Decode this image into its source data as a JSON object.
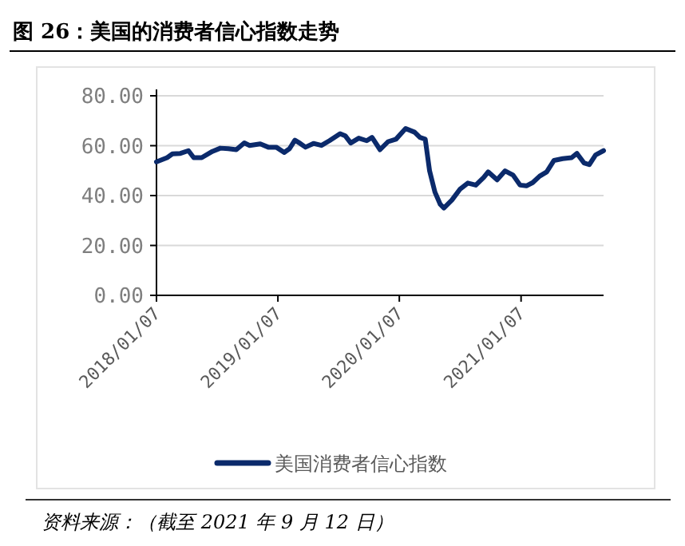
{
  "chart_data": {
    "type": "line",
    "title": "图 26：美国的消费者信心指数走势",
    "x": [
      "2018-01-07",
      "2018-02-08",
      "2018-02-24",
      "2018-03-20",
      "2018-04-13",
      "2018-04-29",
      "2018-05-23",
      "2018-06-24",
      "2018-07-18",
      "2018-08-11",
      "2018-09-04",
      "2018-09-28",
      "2018-10-14",
      "2018-11-15",
      "2018-12-09",
      "2019-01-02",
      "2019-01-26",
      "2019-02-11",
      "2019-02-27",
      "2019-03-15",
      "2019-03-31",
      "2019-04-24",
      "2019-05-18",
      "2019-06-11",
      "2019-07-13",
      "2019-07-29",
      "2019-08-14",
      "2019-09-07",
      "2019-10-01",
      "2019-10-17",
      "2019-11-10",
      "2019-12-04",
      "2019-12-28",
      "2020-01-26",
      "2020-02-22",
      "2020-03-09",
      "2020-03-25",
      "2020-04-07",
      "2020-04-23",
      "2020-05-09",
      "2020-05-20",
      "2020-06-13",
      "2020-07-07",
      "2020-07-31",
      "2020-08-24",
      "2020-09-17",
      "2020-09-30",
      "2020-10-27",
      "2020-11-20",
      "2020-12-14",
      "2021-01-04",
      "2021-01-23",
      "2021-02-11",
      "2021-03-04",
      "2021-03-25",
      "2021-04-16",
      "2021-05-12",
      "2021-06-08",
      "2021-06-24",
      "2021-07-15",
      "2021-07-31",
      "2021-08-19",
      "2021-09-12"
    ],
    "series": [
      {
        "name": "美国消费者信心指数",
        "color": "#0b2a6b",
        "values": [
          53.5,
          55.2,
          56.7,
          56.9,
          58.0,
          55.2,
          55.2,
          57.7,
          59.0,
          58.8,
          58.4,
          61.1,
          60.1,
          60.7,
          59.4,
          59.4,
          57.3,
          58.8,
          62.2,
          60.9,
          59.4,
          60.9,
          60.1,
          62.0,
          64.8,
          63.9,
          61.1,
          63.0,
          62.0,
          63.3,
          58.4,
          61.6,
          62.6,
          66.9,
          65.4,
          63.3,
          62.6,
          49.9,
          41.4,
          36.5,
          35.0,
          38.2,
          42.5,
          45.0,
          44.2,
          47.3,
          49.5,
          46.3,
          49.9,
          48.2,
          44.2,
          43.9,
          45.2,
          47.8,
          49.5,
          54.1,
          54.8,
          55.2,
          56.9,
          53.1,
          52.4,
          56.3,
          58.0
        ]
      }
    ],
    "xlim": [
      "2018-01-07",
      "2021-09-12"
    ],
    "xticks": [
      {
        "value": "2018-01-07",
        "label": "2018/01/07"
      },
      {
        "value": "2019-01-07",
        "label": "2019/01/07"
      },
      {
        "value": "2020-01-07",
        "label": "2020/01/07"
      },
      {
        "value": "2021-01-07",
        "label": "2021/01/07"
      }
    ],
    "ylim": [
      0,
      80
    ],
    "yticks": [
      {
        "value": 0,
        "label": "0.00"
      },
      {
        "value": 20,
        "label": "20.00"
      },
      {
        "value": 40,
        "label": "40.00"
      },
      {
        "value": 60,
        "label": "60.00"
      },
      {
        "value": 80,
        "label": "80.00"
      }
    ],
    "grid": "y",
    "legend": "bottom",
    "annotations": [
      "资料来源：（截至 2021 年 9 月 12 日）"
    ]
  }
}
